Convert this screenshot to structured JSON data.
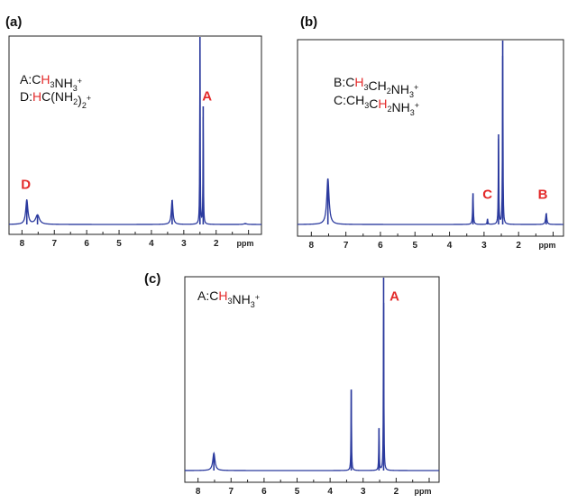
{
  "colors": {
    "trace": "#2b3a9e",
    "highlight": "#e32b2b",
    "frame": "#222222"
  },
  "chart_data": [
    {
      "type": "line",
      "panel_label": "(a)",
      "x_unit": "ppm",
      "xlim": [
        8.4,
        0.6
      ],
      "x_ticks": [
        "8",
        "7",
        "6",
        "5",
        "4",
        "3",
        "2"
      ],
      "legend": [
        {
          "prefix": "A:C",
          "highlight": "H",
          "rest": [
            {
              "t": "3",
              "s": "sub"
            },
            {
              "t": "NH",
              "s": ""
            },
            {
              "t": "3",
              "s": "sub"
            },
            {
              "t": "+",
              "s": "sup"
            }
          ]
        },
        {
          "prefix": "D:",
          "highlight": "H",
          "rest": [
            {
              "t": "C(NH",
              "s": ""
            },
            {
              "t": "2",
              "s": "sub"
            },
            {
              "t": ")",
              "s": ""
            },
            {
              "t": "2",
              "s": "sub"
            },
            {
              "t": "+",
              "s": "sup"
            }
          ]
        }
      ],
      "peaks": [
        {
          "ppm": 7.85,
          "height": 0.13,
          "width": 0.04
        },
        {
          "ppm": 7.52,
          "height": 0.05,
          "width": 0.07
        },
        {
          "ppm": 3.36,
          "height": 0.13,
          "width": 0.03
        },
        {
          "ppm": 2.5,
          "height": 1.0,
          "width": 0.008
        },
        {
          "ppm": 2.4,
          "height": 0.63,
          "width": 0.008
        },
        {
          "ppm": 1.1,
          "height": 0.005,
          "width": 0.05
        }
      ],
      "peak_labels": [
        {
          "text": "A",
          "ppm": 2.28,
          "level": 0.66
        },
        {
          "text": "D",
          "ppm": 7.88,
          "level": 0.19
        }
      ]
    },
    {
      "type": "line",
      "panel_label": "(b)",
      "x_unit": "ppm",
      "xlim": [
        8.4,
        0.7
      ],
      "x_ticks": [
        "8",
        "7",
        "6",
        "5",
        "4",
        "3",
        "2"
      ],
      "legend": [
        {
          "prefix": "B:C",
          "highlight": "H",
          "rest": [
            {
              "t": "3",
              "s": "sub"
            },
            {
              "t": "CH",
              "s": ""
            },
            {
              "t": "2",
              "s": "sub"
            },
            {
              "t": "NH",
              "s": ""
            },
            {
              "t": "3",
              "s": "sub"
            },
            {
              "t": "+",
              "s": "sup"
            }
          ]
        },
        {
          "prefix": "C:CH",
          "highlight": "",
          "rest": [
            {
              "t": "3",
              "s": "sub"
            },
            {
              "t": "C",
              "s": ""
            },
            {
              "t": "H",
              "s": "hl"
            },
            {
              "t": "2",
              "s": "sub"
            },
            {
              "t": "NH",
              "s": ""
            },
            {
              "t": "3",
              "s": "sub"
            },
            {
              "t": "+",
              "s": "sup"
            }
          ]
        }
      ],
      "peaks": [
        {
          "ppm": 7.52,
          "height": 0.25,
          "width": 0.04
        },
        {
          "ppm": 3.32,
          "height": 0.17,
          "width": 0.012
        },
        {
          "ppm": 2.9,
          "height": 0.03,
          "width": 0.012
        },
        {
          "ppm": 2.58,
          "height": 0.49,
          "width": 0.009
        },
        {
          "ppm": 2.46,
          "height": 1.0,
          "width": 0.008
        },
        {
          "ppm": 1.2,
          "height": 0.06,
          "width": 0.02
        }
      ],
      "peak_labels": [
        {
          "text": "C",
          "ppm": 2.9,
          "level": 0.14
        },
        {
          "text": "B",
          "ppm": 1.3,
          "level": 0.14
        }
      ]
    },
    {
      "type": "line",
      "panel_label": "(c)",
      "x_unit": "ppm",
      "xlim": [
        8.4,
        0.7
      ],
      "x_ticks": [
        "8",
        "7",
        "6",
        "5",
        "4",
        "3",
        "2"
      ],
      "legend": [
        {
          "prefix": "A:C",
          "highlight": "H",
          "rest": [
            {
              "t": "3",
              "s": "sub"
            },
            {
              "t": "NH",
              "s": ""
            },
            {
              "t": "3",
              "s": "sub"
            },
            {
              "t": "+",
              "s": "sup"
            }
          ]
        }
      ],
      "peaks": [
        {
          "ppm": 7.52,
          "height": 0.09,
          "width": 0.04
        },
        {
          "ppm": 3.36,
          "height": 0.42,
          "width": 0.009
        },
        {
          "ppm": 2.52,
          "height": 0.22,
          "width": 0.009
        },
        {
          "ppm": 2.38,
          "height": 1.0,
          "width": 0.008
        }
      ],
      "peak_labels": [
        {
          "text": "A",
          "ppm": 2.05,
          "level": 0.88
        }
      ]
    }
  ]
}
